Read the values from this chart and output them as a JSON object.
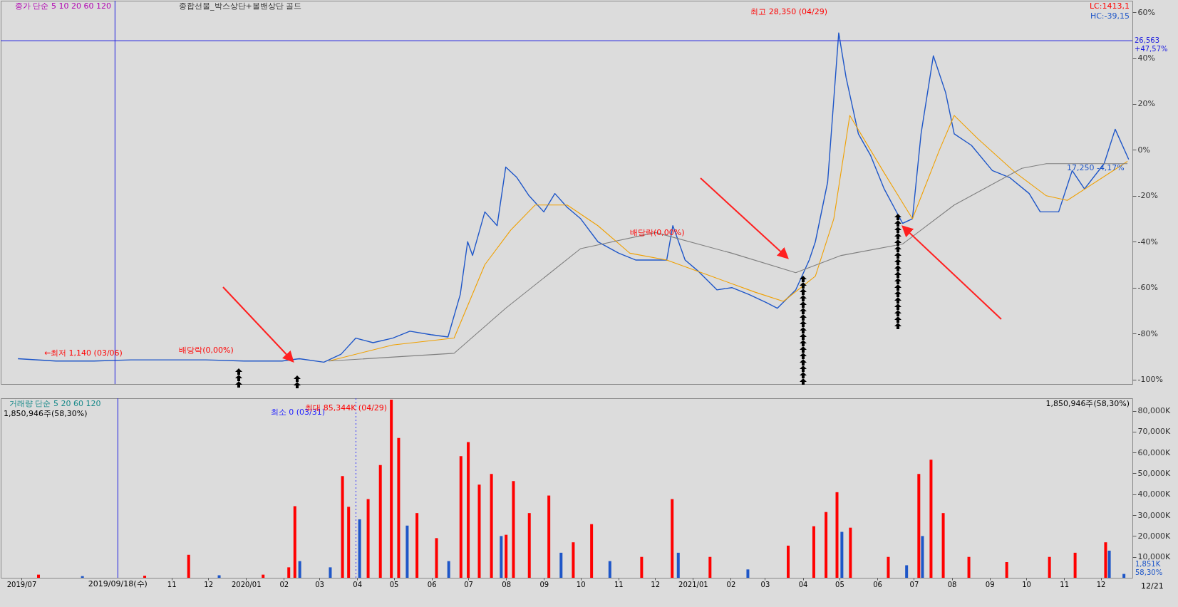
{
  "chart_data": [
    {
      "type": "line",
      "xlim": [
        "2019-06-17",
        "2021-12-24"
      ],
      "ylim": [
        -102,
        65
      ],
      "yticks": [
        {
          "value": 60,
          "label": "60%"
        },
        {
          "value": 40,
          "label": "40%"
        },
        {
          "value": 20,
          "label": "20%"
        },
        {
          "value": 0,
          "label": "0%"
        },
        {
          "value": -20,
          "label": "-20%"
        },
        {
          "value": -40,
          "label": "-40%"
        },
        {
          "value": -60,
          "label": "-60%"
        },
        {
          "value": -80,
          "label": "-80%"
        },
        {
          "value": -100,
          "label": "-100%"
        }
      ],
      "grid": false,
      "series": [
        {
          "color": "#1e56c8",
          "x": [
            "2019-07-01",
            "2019-08-01",
            "2019-09-01",
            "2019-10-01",
            "2019-11-01",
            "2019-12-01",
            "2020-01-01",
            "2020-02-01",
            "2020-02-15",
            "2020-03-06",
            "2020-03-20",
            "2020-04-01",
            "2020-04-15",
            "2020-05-01",
            "2020-05-15",
            "2020-06-01",
            "2020-06-15",
            "2020-06-25",
            "2020-07-01",
            "2020-07-05",
            "2020-07-15",
            "2020-07-25",
            "2020-08-01",
            "2020-08-10",
            "2020-08-20",
            "2020-09-01",
            "2020-09-10",
            "2020-09-20",
            "2020-10-01",
            "2020-10-15",
            "2020-11-01",
            "2020-11-15",
            "2020-12-01",
            "2020-12-10",
            "2020-12-15",
            "2020-12-25",
            "2021-01-05",
            "2021-01-20",
            "2021-02-01",
            "2021-02-15",
            "2021-03-01",
            "2021-03-10",
            "2021-03-25",
            "2021-04-05",
            "2021-04-10",
            "2021-04-20",
            "2021-04-29",
            "2021-05-05",
            "2021-05-15",
            "2021-05-25",
            "2021-06-05",
            "2021-06-20",
            "2021-06-28",
            "2021-07-05",
            "2021-07-15",
            "2021-07-25",
            "2021-08-01",
            "2021-08-15",
            "2021-09-01",
            "2021-09-15",
            "2021-10-01",
            "2021-10-10",
            "2021-10-25",
            "2021-11-05",
            "2021-11-15",
            "2021-12-01",
            "2021-12-10",
            "2021-12-21"
          ],
          "values": [
            -91,
            -92,
            -92,
            -91.5,
            -91.5,
            -91.5,
            -92,
            -92,
            -91,
            -92.5,
            -89,
            -82,
            -84,
            -82,
            -79,
            -80.5,
            -81.5,
            -63,
            -40,
            -46,
            -27,
            -33,
            -7.5,
            -12,
            -20,
            -27,
            -19,
            -25,
            -30,
            -40,
            -45,
            -48,
            -48,
            -48,
            -33,
            -48,
            -53,
            -61,
            -60,
            -63,
            -66.5,
            -69,
            -61,
            -48,
            -40,
            -14,
            51,
            31.5,
            7,
            -2.5,
            -17,
            -32,
            -30,
            7,
            41,
            25,
            7,
            2,
            -9,
            -12,
            -19,
            -27,
            -27,
            -9,
            -17,
            -6,
            9,
            -4.17
          ]
        },
        {
          "color": "#f0a000",
          "x": [
            "2020-03-10",
            "2020-05-01",
            "2020-06-20",
            "2020-07-15",
            "2020-08-05",
            "2020-08-25",
            "2020-09-20",
            "2020-10-15",
            "2020-11-10",
            "2020-12-10",
            "2021-01-15",
            "2021-02-20",
            "2021-03-15",
            "2021-04-10",
            "2021-04-25",
            "2021-05-08",
            "2021-06-05",
            "2021-06-28",
            "2021-07-20",
            "2021-08-01",
            "2021-08-20",
            "2021-09-20",
            "2021-10-15",
            "2021-11-01",
            "2021-12-20"
          ],
          "values": [
            -92,
            -85,
            -82,
            -50,
            -35,
            -24,
            -24,
            -33,
            -45,
            -48,
            -55,
            -62,
            -66,
            -55,
            -30,
            15,
            -10,
            -30,
            0,
            15,
            5,
            -10,
            -20,
            -22,
            -5
          ]
        },
        {
          "color": "#7f7f7f",
          "x": [
            "2020-03-10",
            "2020-06-20",
            "2020-08-01",
            "2020-10-01",
            "2020-12-01",
            "2021-02-01",
            "2021-03-25",
            "2021-05-01",
            "2021-06-20",
            "2021-08-01",
            "2021-09-25",
            "2021-10-15",
            "2021-12-20"
          ],
          "values": [
            -92,
            -88.6,
            -69,
            -43,
            -36,
            -45,
            -53.5,
            -46,
            -41,
            -24,
            -8,
            -6,
            -6
          ]
        }
      ],
      "ref_lines": [
        {
          "axis": "x",
          "value": "2019-09-18",
          "color": "#2020e0"
        },
        {
          "axis": "y",
          "value": 47.57,
          "label": "26,563 +47,57%",
          "color": "#2020e0"
        }
      ],
      "annotations": [
        "종가 단순 5 10 20 60 120",
        "종합선물_박스상단+볼밴상단 골드",
        "LC:1413,1",
        "HC:-39,15",
        "최고 28,350 (04/29)",
        {
          "text": "←최저 1,140 (03/06)",
          "x": "2019-07-20",
          "y": -92.5
        },
        {
          "text": "배당락(0,00%)",
          "x": "2019-12-27",
          "y": -91
        },
        {
          "text": "배당락(0,00%)",
          "x": "2020-12-28",
          "y": -40
        },
        {
          "text": "17,250 -4,17%",
          "x": "2021-12-21",
          "y": -4.17
        }
      ]
    },
    {
      "type": "bar",
      "xlim": [
        "2019-06-17",
        "2021-12-24"
      ],
      "ylim": [
        0,
        86000
      ],
      "yticks": [
        {
          "value": 10000,
          "label": "10,000K"
        },
        {
          "value": 20000,
          "label": "20,000K"
        },
        {
          "value": 30000,
          "label": "30,000K"
        },
        {
          "value": 40000,
          "label": "40,000K"
        },
        {
          "value": 50000,
          "label": "50,000K"
        },
        {
          "value": 60000,
          "label": "60,000K"
        },
        {
          "value": 70000,
          "label": "70,000K"
        },
        {
          "value": 80000,
          "label": "80,000K"
        }
      ],
      "xticks": [
        {
          "value": "2019-07-01",
          "label": "2019/07"
        },
        {
          "value": "2019-11-01",
          "label": "11"
        },
        {
          "value": "2019-12-01",
          "label": "12"
        },
        {
          "value": "2020-01-01",
          "label": "2020/01"
        },
        {
          "value": "2020-02-01",
          "label": "02"
        },
        {
          "value": "2020-03-01",
          "label": "03"
        },
        {
          "value": "2020-04-01",
          "label": "04"
        },
        {
          "value": "2020-05-01",
          "label": "05"
        },
        {
          "value": "2020-06-01",
          "label": "06"
        },
        {
          "value": "2020-07-01",
          "label": "07"
        },
        {
          "value": "2020-08-01",
          "label": "08"
        },
        {
          "value": "2020-09-01",
          "label": "09"
        },
        {
          "value": "2020-10-01",
          "label": "10"
        },
        {
          "value": "2020-11-01",
          "label": "11"
        },
        {
          "value": "2020-12-01",
          "label": "12"
        },
        {
          "value": "2021-01-01",
          "label": "2021/01"
        },
        {
          "value": "2021-02-01",
          "label": "02"
        },
        {
          "value": "2021-03-01",
          "label": "03"
        },
        {
          "value": "2021-04-01",
          "label": "04"
        },
        {
          "value": "2021-05-01",
          "label": "05"
        },
        {
          "value": "2021-06-01",
          "label": "06"
        },
        {
          "value": "2021-07-01",
          "label": "07"
        },
        {
          "value": "2021-08-01",
          "label": "08"
        },
        {
          "value": "2021-09-01",
          "label": "09"
        },
        {
          "value": "2021-10-01",
          "label": "10"
        },
        {
          "value": "2021-11-01",
          "label": "11"
        },
        {
          "value": "2021-12-01",
          "label": "12"
        }
      ],
      "grid": false,
      "x": [
        "2019-07-15",
        "2019-08-20",
        "2019-10-10",
        "2019-11-15",
        "2019-12-10",
        "2020-01-15",
        "2020-02-05",
        "2020-02-10",
        "2020-02-14",
        "2020-03-10",
        "2020-03-20",
        "2020-03-25",
        "2020-03-31",
        "2020-04-03",
        "2020-04-10",
        "2020-04-20",
        "2020-04-29",
        "2020-05-05",
        "2020-05-12",
        "2020-05-20",
        "2020-06-05",
        "2020-06-15",
        "2020-06-25",
        "2020-07-01",
        "2020-07-10",
        "2020-07-20",
        "2020-07-28",
        "2020-08-01",
        "2020-08-07",
        "2020-08-20",
        "2020-09-05",
        "2020-09-15",
        "2020-09-25",
        "2020-10-10",
        "2020-10-25",
        "2020-11-20",
        "2020-12-15",
        "2020-12-20",
        "2021-01-15",
        "2021-02-15",
        "2021-03-20",
        "2021-04-10",
        "2021-04-20",
        "2021-04-29",
        "2021-05-03",
        "2021-05-10",
        "2021-06-10",
        "2021-06-25",
        "2021-07-05",
        "2021-07-08",
        "2021-07-15",
        "2021-07-25",
        "2021-08-15",
        "2021-09-15",
        "2021-10-20",
        "2021-11-10",
        "2021-12-05",
        "2021-12-08",
        "2021-12-20"
      ],
      "values": [
        1500,
        800,
        1000,
        11000,
        1200,
        1500,
        5000,
        34300,
        8000,
        5000,
        48700,
        34000,
        0,
        28000,
        37700,
        54000,
        85344,
        67000,
        25000,
        31000,
        19000,
        8000,
        58300,
        65000,
        44600,
        49700,
        20000,
        20600,
        46300,
        31000,
        39400,
        12000,
        17000,
        25700,
        8000,
        10000,
        37700,
        12000,
        10000,
        4000,
        15400,
        24700,
        31500,
        41000,
        22000,
        24000,
        10000,
        6000,
        49700,
        20000,
        56600,
        31000,
        10000,
        7500,
        10000,
        12000,
        17000,
        13000,
        1851
      ],
      "colors": [
        "#ff0000",
        "#1e56c8",
        "#ff0000",
        "#ff0000",
        "#1e56c8",
        "#ff0000",
        "#ff0000",
        "#ff0000",
        "#1e56c8",
        "#1e56c8",
        "#ff0000",
        "#ff0000",
        "#ff0000",
        "#1e56c8",
        "#ff0000",
        "#ff0000",
        "#ff0000",
        "#ff0000",
        "#1e56c8",
        "#ff0000",
        "#ff0000",
        "#1e56c8",
        "#ff0000",
        "#ff0000",
        "#ff0000",
        "#ff0000",
        "#1e56c8",
        "#ff0000",
        "#ff0000",
        "#ff0000",
        "#ff0000",
        "#1e56c8",
        "#ff0000",
        "#ff0000",
        "#1e56c8",
        "#ff0000",
        "#ff0000",
        "#1e56c8",
        "#ff0000",
        "#1e56c8",
        "#ff0000",
        "#ff0000",
        "#ff0000",
        "#ff0000",
        "#1e56c8",
        "#ff0000",
        "#ff0000",
        "#1e56c8",
        "#ff0000",
        "#1e56c8",
        "#ff0000",
        "#ff0000",
        "#ff0000",
        "#ff0000",
        "#ff0000",
        "#ff0000",
        "#ff0000",
        "#1e56c8",
        "#1e56c8"
      ],
      "ref_lines": [
        {
          "axis": "x",
          "value": "2019-09-18",
          "label": "2019/09/18(수)",
          "color": "#2020e0"
        },
        {
          "axis": "x",
          "value": "2020-03-31",
          "color": "#3030ff",
          "line_style": "dotted"
        }
      ],
      "annotations": [
        "거래량 단순 5 20 60 120",
        "1,850,946주(58,30%)",
        "1,850,946주(58,30%)",
        "최소 0 (03/31)",
        "1,851K 58,30%",
        "12/21",
        {
          "text": "최대 85,344K (04/29)",
          "x": "2020-04-29",
          "y": 85344
        }
      ]
    }
  ]
}
